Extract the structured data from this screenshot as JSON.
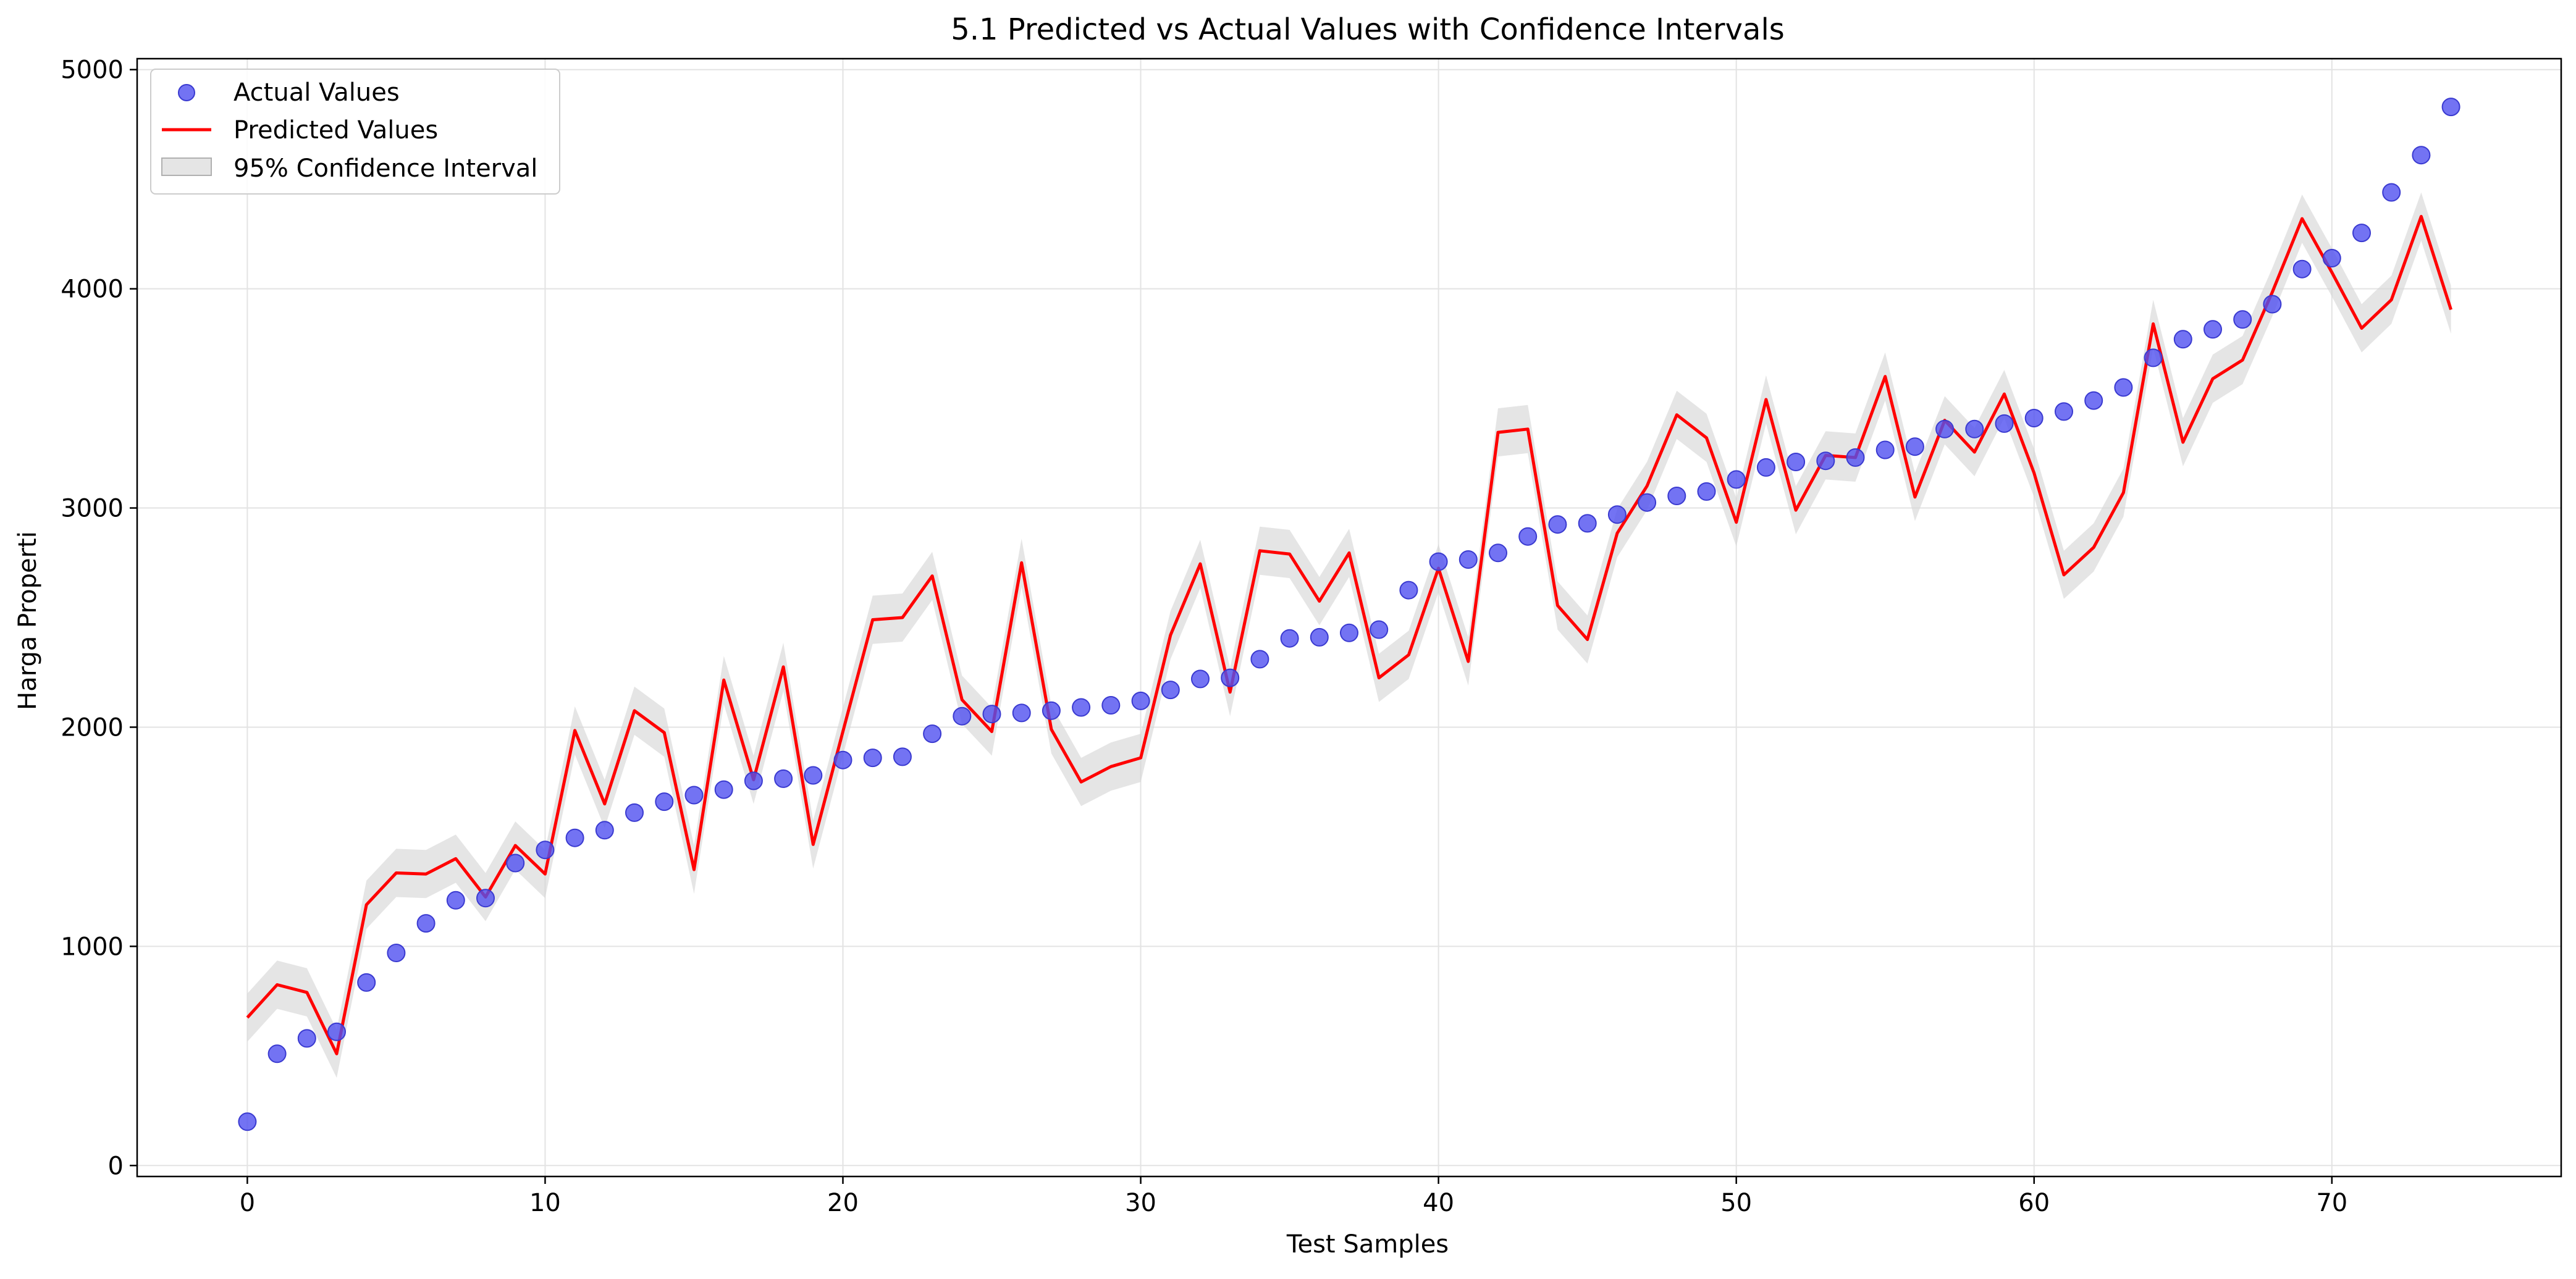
{
  "chart_data": {
    "type": "line",
    "title": "5.1 Predicted vs Actual Values with Confidence Intervals",
    "xlabel": "Test Samples",
    "ylabel": "Harga Properti",
    "xlim": [
      -3.7,
      77.7
    ],
    "ylim": [
      -50,
      5050
    ],
    "xticks": [
      0,
      10,
      20,
      30,
      40,
      50,
      60,
      70
    ],
    "yticks": [
      0,
      1000,
      2000,
      3000,
      4000,
      5000
    ],
    "grid": true,
    "legend_position": "top-left",
    "x": [
      0,
      1,
      2,
      3,
      4,
      5,
      6,
      7,
      8,
      9,
      10,
      11,
      12,
      13,
      14,
      15,
      16,
      17,
      18,
      19,
      20,
      21,
      22,
      23,
      24,
      25,
      26,
      27,
      28,
      29,
      30,
      31,
      32,
      33,
      34,
      35,
      36,
      37,
      38,
      39,
      40,
      41,
      42,
      43,
      44,
      45,
      46,
      47,
      48,
      49,
      50,
      51,
      52,
      53,
      54,
      55,
      56,
      57,
      58,
      59,
      60,
      61,
      62,
      63,
      64,
      65,
      66,
      67,
      68,
      69,
      70,
      71,
      72,
      73,
      74
    ],
    "series": [
      {
        "name": "Actual Values",
        "kind": "scatter",
        "color": "#5050f0",
        "values": [
          200,
          510,
          580,
          610,
          835,
          970,
          1105,
          1210,
          1220,
          1380,
          1440,
          1495,
          1530,
          1610,
          1660,
          1690,
          1715,
          1755,
          1765,
          1780,
          1850,
          1860,
          1865,
          1970,
          2050,
          2060,
          2065,
          2075,
          2090,
          2100,
          2120,
          2170,
          2220,
          2225,
          2310,
          2405,
          2410,
          2430,
          2445,
          2625,
          2755,
          2765,
          2795,
          2870,
          2925,
          2930,
          2970,
          3025,
          3055,
          3075,
          3130,
          3185,
          3210,
          3215,
          3230,
          3265,
          3280,
          3360,
          3360,
          3385,
          3410,
          3440,
          3490,
          3550,
          3685,
          3770,
          3815,
          3860,
          3930,
          4090,
          4140,
          4255,
          4440,
          4610,
          4830
        ]
      },
      {
        "name": "Predicted Values",
        "kind": "line",
        "color": "#ff0000",
        "values": [
          675,
          825,
          790,
          510,
          1190,
          1335,
          1330,
          1400,
          1225,
          1460,
          1330,
          1985,
          1650,
          2075,
          1975,
          1350,
          2215,
          1760,
          2275,
          1465,
          1980,
          2490,
          2500,
          2690,
          2125,
          1980,
          2750,
          1990,
          1750,
          1820,
          1860,
          2420,
          2745,
          2160,
          2805,
          2790,
          2575,
          2795,
          2225,
          2330,
          2725,
          2300,
          3345,
          3360,
          2555,
          2400,
          2885,
          3100,
          3425,
          3320,
          2935,
          3495,
          2990,
          3240,
          3230,
          3600,
          3050,
          3400,
          3255,
          3520,
          3160,
          2695,
          2820,
          3070,
          3840,
          3300,
          3590,
          3675,
          3985,
          4320,
          4075,
          3820,
          3950,
          4330,
          3905
        ]
      },
      {
        "name": "95% Confidence Interval",
        "kind": "band",
        "color": "#d3d3d3",
        "half_width": 110
      }
    ]
  }
}
